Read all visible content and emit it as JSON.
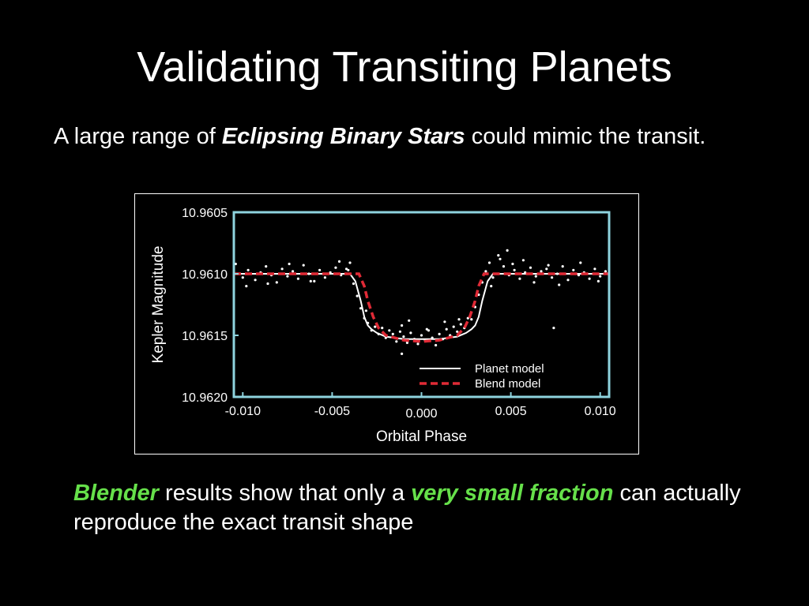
{
  "slide": {
    "title": "Validating Transiting Planets",
    "intro": {
      "before": "A large range of ",
      "emphasis": "Eclipsing Binary Stars",
      "after": " could mimic the transit."
    },
    "outro": {
      "highlight1": "Blender",
      "mid": " results show that only a ",
      "highlight2": "very small fraction",
      "after": " can actually reproduce the exact transit shape"
    },
    "highlight_color": "#66e04a"
  },
  "chart_data": {
    "type": "line",
    "title": "",
    "xlabel": "Orbital Phase",
    "ylabel": "Kepler Magnitude",
    "xlim": [
      -0.0105,
      0.0105
    ],
    "ylim": [
      10.962,
      10.9605
    ],
    "y_inverted": true,
    "x_ticks": [
      "-0.010",
      "-0.005",
      "0.000",
      "0.005",
      "0.010"
    ],
    "x_tick_values": [
      -0.01,
      -0.005,
      0.0,
      0.005,
      0.01
    ],
    "y_ticks": [
      "10.9605",
      "10.9610",
      "10.9615",
      "10.9620"
    ],
    "y_tick_values": [
      10.9605,
      10.961,
      10.9615,
      10.962
    ],
    "frame_color": "#8ed3de",
    "legend": {
      "placement": "bottom-right"
    },
    "series": [
      {
        "name": "Planet model",
        "style": "solid",
        "color": "#ffffff",
        "x": [
          -0.0105,
          -0.004,
          -0.0037,
          -0.0034,
          -0.0032,
          -0.003,
          -0.0028,
          -0.0025,
          -0.002,
          -0.001,
          0.0,
          0.001,
          0.002,
          0.0025,
          0.0028,
          0.003,
          0.0032,
          0.0034,
          0.0037,
          0.004,
          0.0105
        ],
        "y": [
          10.961,
          10.961,
          10.96106,
          10.96122,
          10.96135,
          10.96142,
          10.96145,
          10.96148,
          10.96151,
          10.96153,
          10.96153,
          10.96153,
          10.96151,
          10.96148,
          10.96145,
          10.96142,
          10.96135,
          10.96122,
          10.96106,
          10.961,
          10.961
        ]
      },
      {
        "name": "Blend model",
        "style": "dashed",
        "color": "#e02a36",
        "x": [
          -0.0105,
          -0.0035,
          -0.0032,
          -0.003,
          -0.0027,
          -0.0024,
          -0.002,
          -0.001,
          0.0,
          0.001,
          0.002,
          0.0024,
          0.0027,
          0.003,
          0.0032,
          0.0035,
          0.0105
        ],
        "y": [
          10.961,
          10.961,
          10.9611,
          10.96122,
          10.96135,
          10.96144,
          10.9615,
          10.96154,
          10.96155,
          10.96154,
          10.9615,
          10.96144,
          10.96135,
          10.96122,
          10.9611,
          10.961,
          10.961
        ]
      }
    ],
    "observations": {
      "name": "",
      "color": "#ffffff",
      "x": [
        -0.0104,
        -0.01,
        -0.0097,
        -0.0093,
        -0.009,
        -0.0087,
        -0.0084,
        -0.0081,
        -0.0078,
        -0.0075,
        -0.0072,
        -0.0069,
        -0.0066,
        -0.0063,
        -0.006,
        -0.0057,
        -0.0054,
        -0.0051,
        -0.0048,
        -0.0045,
        -0.0042,
        -0.004,
        -0.0038,
        -0.0036,
        -0.0034,
        -0.0032,
        -0.003,
        -0.0028,
        -0.0026,
        -0.0024,
        -0.0022,
        -0.002,
        -0.0018,
        -0.0016,
        -0.0014,
        -0.0012,
        -0.001,
        -0.0008,
        -0.0006,
        -0.0004,
        -0.0002,
        0.0,
        0.0002,
        0.0004,
        0.0006,
        0.0008,
        0.001,
        0.0012,
        0.0014,
        0.0016,
        0.0018,
        0.002,
        0.0022,
        0.0024,
        0.0026,
        0.0028,
        0.003,
        0.0032,
        0.0034,
        0.0036,
        0.0038,
        0.004,
        0.0043,
        0.0046,
        0.0049,
        0.0052,
        0.0055,
        0.0058,
        0.0061,
        0.0064,
        0.0067,
        0.007,
        0.0073,
        0.0076,
        0.0079,
        0.0082,
        0.0085,
        0.0088,
        0.0091,
        0.0094,
        0.0097,
        0.01,
        0.0103,
        -0.0098,
        -0.0086,
        -0.0074,
        -0.0062,
        -0.0046,
        -0.0041,
        -0.0031,
        -0.0011,
        -0.0007,
        0.0003,
        0.0013,
        0.0021,
        0.0039,
        0.0044,
        0.0048,
        0.0051,
        0.0057,
        0.0063,
        0.0071,
        0.0077,
        0.0089,
        0.0099,
        -0.0011,
        0.0074
      ],
      "y": [
        10.96092,
        10.96103,
        10.96097,
        10.96105,
        10.96099,
        10.96094,
        10.96101,
        10.96107,
        10.96096,
        10.96102,
        10.96098,
        10.96104,
        10.96093,
        10.961,
        10.96106,
        10.96097,
        10.96103,
        10.96099,
        10.96095,
        10.96101,
        10.96096,
        10.96091,
        10.96108,
        10.96118,
        10.96128,
        10.96136,
        10.9614,
        10.96146,
        10.96143,
        10.96149,
        10.96144,
        10.96152,
        10.96146,
        10.96149,
        10.96155,
        10.96147,
        10.96151,
        10.96156,
        10.96148,
        10.96153,
        10.96157,
        10.9615,
        10.96154,
        10.96146,
        10.96152,
        10.96158,
        10.96149,
        10.96153,
        10.96145,
        10.9615,
        10.96143,
        10.96147,
        10.96141,
        10.96144,
        10.96136,
        10.96137,
        10.96127,
        10.96117,
        10.96107,
        10.96098,
        10.96091,
        10.96103,
        10.96085,
        10.96094,
        10.96101,
        10.96097,
        10.96104,
        10.96099,
        10.96095,
        10.96102,
        10.96098,
        10.96096,
        10.96103,
        10.961,
        10.96094,
        10.96105,
        10.96097,
        10.96101,
        10.96099,
        10.96104,
        10.96096,
        10.96102,
        10.96098,
        10.9611,
        10.96108,
        10.96092,
        10.96106,
        10.9609,
        10.96097,
        10.9613,
        10.96142,
        10.96138,
        10.96145,
        10.96139,
        10.96137,
        10.9611,
        10.96088,
        10.96081,
        10.96092,
        10.96089,
        10.96107,
        10.96093,
        10.96109,
        10.96091,
        10.96106,
        10.96165,
        10.96144
      ]
    }
  }
}
